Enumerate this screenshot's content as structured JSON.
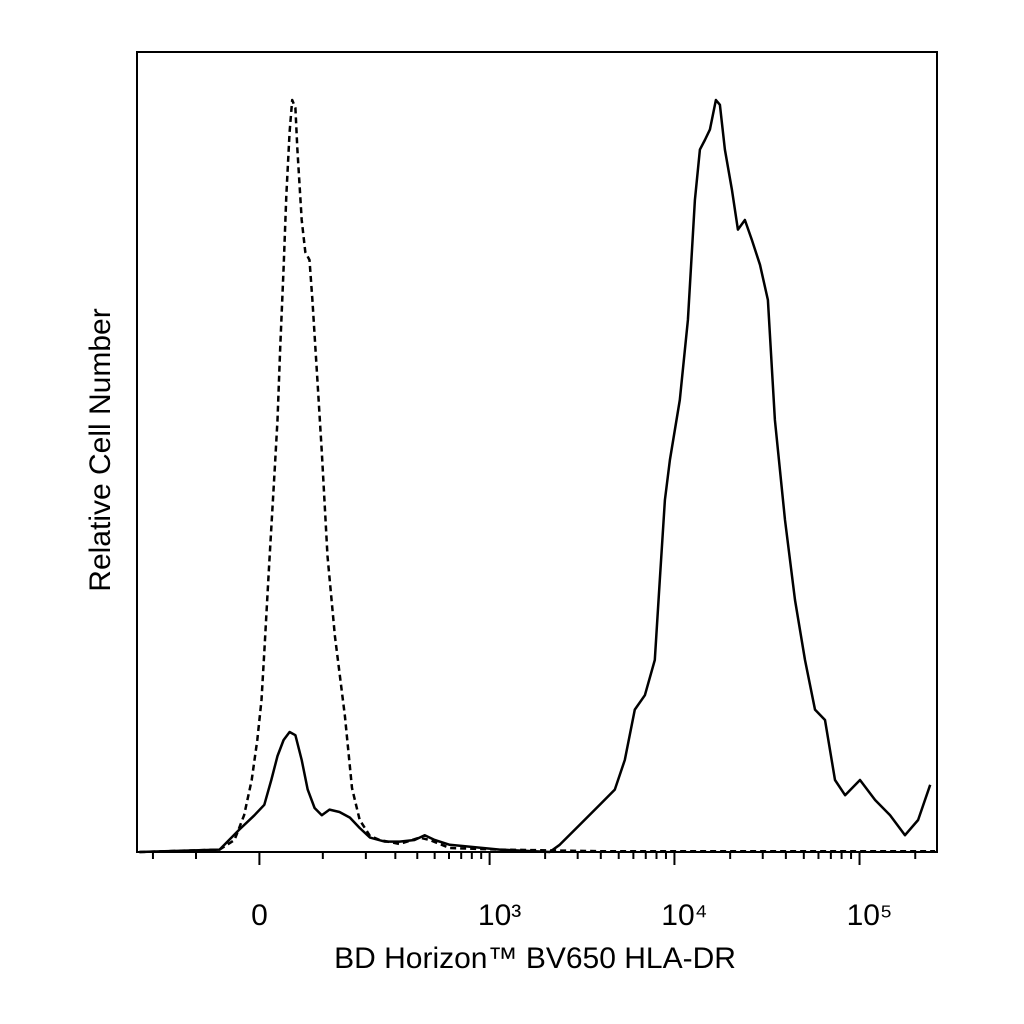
{
  "chart_data": {
    "type": "line",
    "x_label": "BD Horizon™ BV650 HLA-DR",
    "y_label": "Relative Cell Number",
    "xscale": "biexponential",
    "xlim": [
      -250,
      262144
    ],
    "ylim": [
      0,
      100
    ],
    "xticks": [
      0,
      {
        "value": 1000,
        "label": "10³"
      },
      {
        "value": 10000,
        "label": "10⁴"
      },
      {
        "value": 100000,
        "label": "10⁵"
      }
    ],
    "minor_xticks": [
      -200,
      -100,
      100,
      200,
      300,
      400,
      500,
      600,
      700,
      800,
      900,
      2000,
      3000,
      4000,
      5000,
      6000,
      7000,
      8000,
      9000,
      20000,
      30000,
      40000,
      50000,
      60000,
      70000,
      80000,
      90000,
      200000
    ],
    "series": [
      {
        "color": "#000000",
        "line_style": "dashed",
        "x": [
          -242,
          -59,
          -36,
          -22,
          -11,
          -3,
          3,
          7,
          14,
          22,
          26,
          30,
          35,
          39,
          44,
          48,
          53,
          56,
          63,
          69,
          76,
          81,
          90,
          98,
          109,
          124,
          146,
          163,
          183,
          212,
          243,
          318,
          412,
          469,
          605,
          1135,
          3950,
          256000
        ],
        "values": [
          0,
          0.3,
          1.5,
          4.6,
          9,
          14,
          19,
          25,
          36,
          48,
          54,
          63,
          73,
          82,
          90,
          94,
          93,
          88,
          79,
          75,
          74,
          69,
          59,
          50,
          37,
          27,
          17,
          8,
          4,
          2,
          1.5,
          1,
          1.8,
          1.5,
          0.5,
          0.3,
          0.1,
          0.1
        ]
      },
      {
        "color": "#000000",
        "line_style": "solid",
        "x": [
          -242,
          -59,
          -29,
          -7,
          7,
          17,
          26,
          35,
          44,
          53,
          63,
          73,
          85,
          98,
          113,
          134,
          158,
          183,
          212,
          260,
          318,
          386,
          440,
          500,
          605,
          1135,
          2117,
          2398,
          3080,
          3950,
          4763,
          5393,
          6108,
          6922,
          7837,
          8336,
          8880,
          9446,
          10694,
          11816,
          12893,
          13723,
          14610,
          15543,
          16751,
          17610,
          18738,
          20444,
          22036,
          24039,
          26226,
          28986,
          32003,
          34917,
          39554,
          44821,
          50746,
          57496,
          65093,
          73738,
          83528,
          100646,
          121313,
          146274,
          176158,
          207188,
          240736
        ],
        "values": [
          0,
          0.3,
          2.8,
          4.6,
          5.9,
          9,
          12,
          14,
          15,
          14.6,
          11.5,
          7.8,
          5.5,
          4.6,
          5.3,
          5,
          4.3,
          3,
          1.8,
          1.3,
          1.3,
          1.5,
          2.1,
          1.5,
          0.9,
          0.3,
          0,
          0.9,
          3.4,
          5.9,
          7.8,
          11.5,
          17.8,
          19.6,
          24,
          34,
          44,
          49,
          56.5,
          66.5,
          81.5,
          87.8,
          89,
          90.3,
          94,
          93.4,
          87.8,
          82.8,
          77.8,
          79,
          76.5,
          73.4,
          69,
          54,
          41.5,
          31.5,
          24,
          17.8,
          16.5,
          9,
          7.1,
          9,
          6.5,
          4.6,
          2.1,
          4,
          8.4
        ]
      }
    ]
  }
}
